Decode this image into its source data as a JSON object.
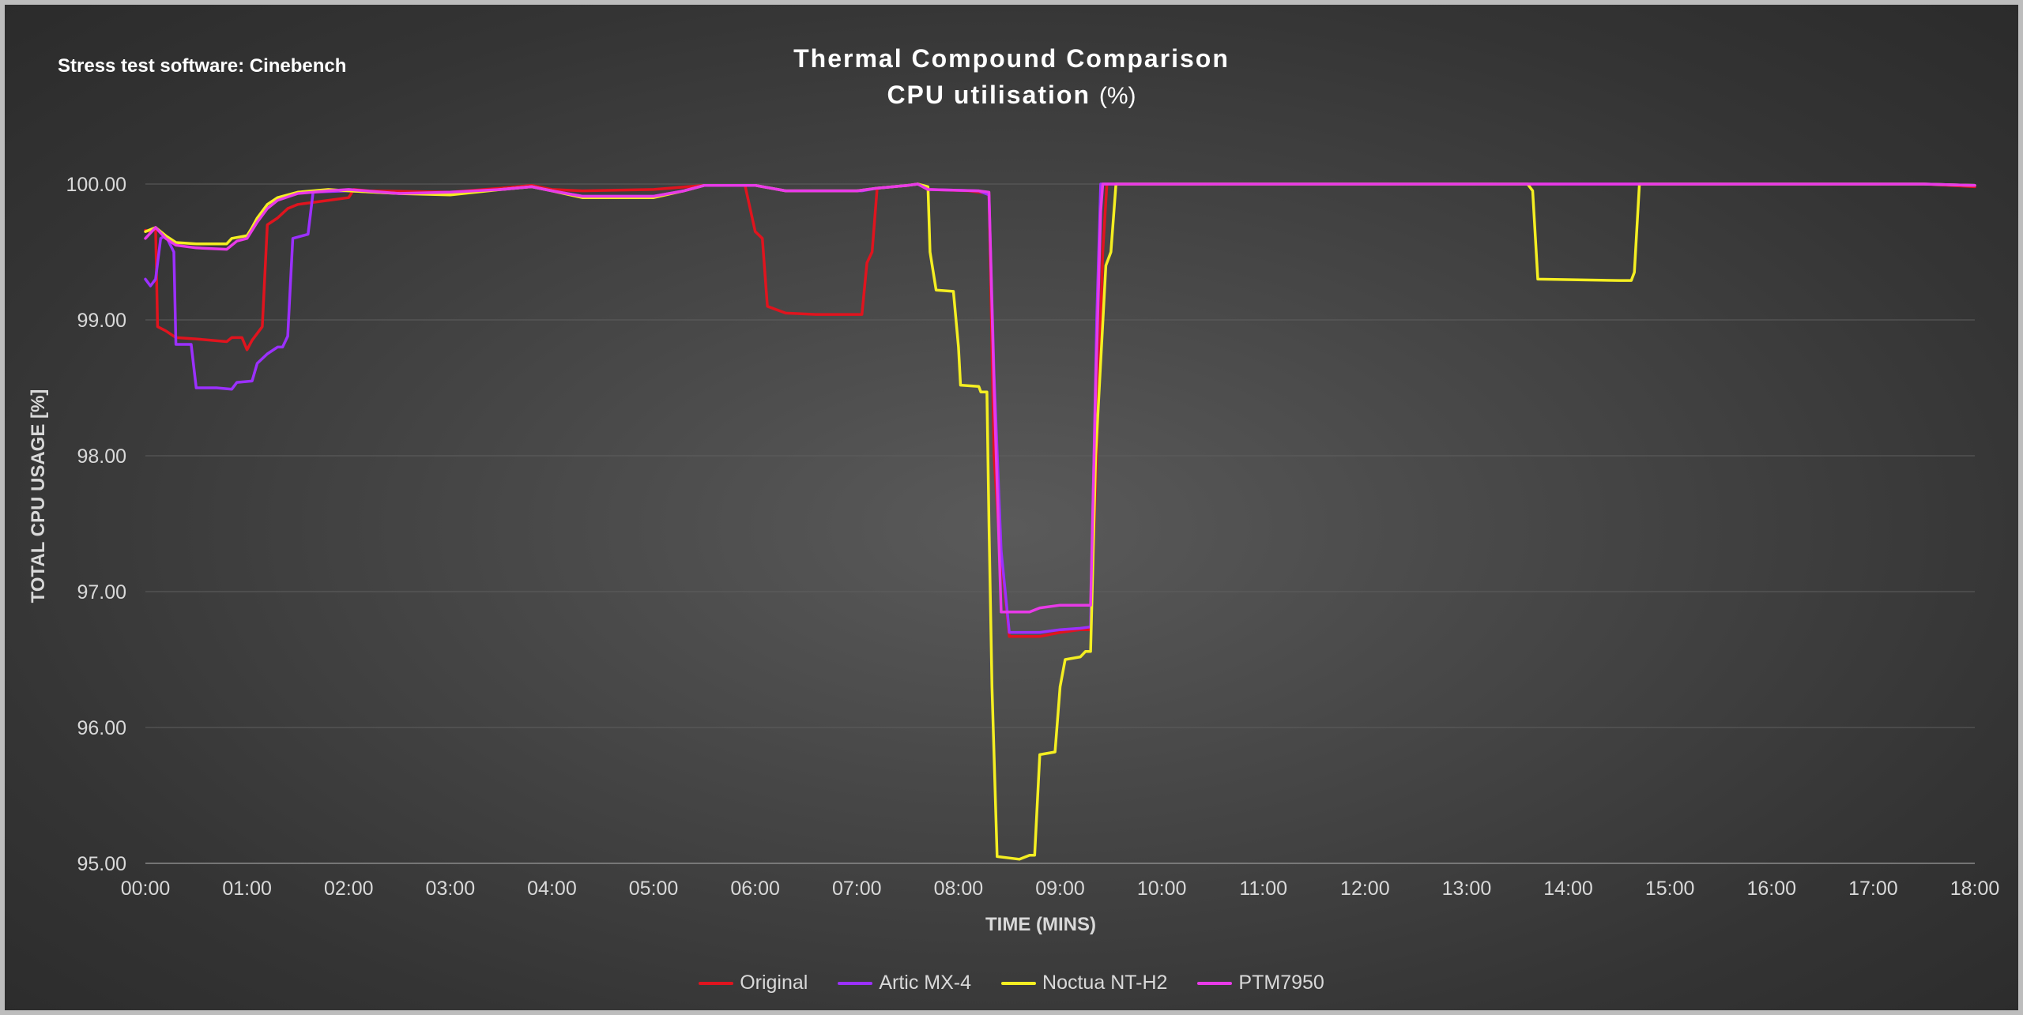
{
  "note": "Stress test software: Cinebench",
  "chart_data": {
    "type": "line",
    "title": "Thermal Compound Comparison",
    "subtitle": "CPU utilisation",
    "subtitle_unit": "(%)",
    "xlabel": "TIME (MINS)",
    "ylabel": "TOTAL CPU USAGE [%]",
    "xlim": [
      0,
      18
    ],
    "ylim": [
      95,
      100
    ],
    "x_ticks": [
      "00:00",
      "01:00",
      "02:00",
      "03:00",
      "04:00",
      "05:00",
      "06:00",
      "07:00",
      "08:00",
      "09:00",
      "10:00",
      "11:00",
      "12:00",
      "13:00",
      "14:00",
      "15:00",
      "16:00",
      "17:00",
      "18:00"
    ],
    "y_ticks": [
      "95.00",
      "96.00",
      "97.00",
      "98.00",
      "99.00",
      "100.00"
    ],
    "grid": true,
    "legend_position": "bottom",
    "series": [
      {
        "name": "Original",
        "color": "#e0141e",
        "points": [
          [
            0,
            99.66
          ],
          [
            0.05,
            99.65
          ],
          [
            0.1,
            99.68
          ],
          [
            0.12,
            98.95
          ],
          [
            0.2,
            98.92
          ],
          [
            0.3,
            98.87
          ],
          [
            0.5,
            98.86
          ],
          [
            0.8,
            98.84
          ],
          [
            0.85,
            98.87
          ],
          [
            0.95,
            98.87
          ],
          [
            1.0,
            98.78
          ],
          [
            1.05,
            98.85
          ],
          [
            1.15,
            98.95
          ],
          [
            1.2,
            99.7
          ],
          [
            1.3,
            99.75
          ],
          [
            1.4,
            99.82
          ],
          [
            1.5,
            99.85
          ],
          [
            1.7,
            99.87
          ],
          [
            2.0,
            99.9
          ],
          [
            2.05,
            99.96
          ],
          [
            2.2,
            99.95
          ],
          [
            3.0,
            99.94
          ],
          [
            3.5,
            99.97
          ],
          [
            3.8,
            99.99
          ],
          [
            4.0,
            99.96
          ],
          [
            4.3,
            99.95
          ],
          [
            5.0,
            99.96
          ],
          [
            5.5,
            99.99
          ],
          [
            5.9,
            99.99
          ],
          [
            6.0,
            99.65
          ],
          [
            6.07,
            99.6
          ],
          [
            6.12,
            99.1
          ],
          [
            6.3,
            99.05
          ],
          [
            6.6,
            99.04
          ],
          [
            7.05,
            99.04
          ],
          [
            7.1,
            99.42
          ],
          [
            7.15,
            99.5
          ],
          [
            7.2,
            99.97
          ],
          [
            7.5,
            99.99
          ],
          [
            7.6,
            100.0
          ],
          [
            7.7,
            99.96
          ],
          [
            8.1,
            99.95
          ],
          [
            8.3,
            99.93
          ],
          [
            8.35,
            98.0
          ],
          [
            8.4,
            97.4
          ],
          [
            8.5,
            96.67
          ],
          [
            8.8,
            96.67
          ],
          [
            9.0,
            96.7
          ],
          [
            9.2,
            96.72
          ],
          [
            9.3,
            96.72
          ],
          [
            9.35,
            97.8
          ],
          [
            9.42,
            99.5
          ],
          [
            9.46,
            100.0
          ],
          [
            12.0,
            100.0
          ],
          [
            17.5,
            100.0
          ],
          [
            18.0,
            99.98
          ]
        ]
      },
      {
        "name": "Artic MX-4",
        "color": "#9b30ff",
        "points": [
          [
            0,
            99.3
          ],
          [
            0.05,
            99.25
          ],
          [
            0.1,
            99.3
          ],
          [
            0.15,
            99.6
          ],
          [
            0.2,
            99.62
          ],
          [
            0.28,
            99.5
          ],
          [
            0.3,
            98.82
          ],
          [
            0.45,
            98.82
          ],
          [
            0.5,
            98.5
          ],
          [
            0.7,
            98.5
          ],
          [
            0.85,
            98.49
          ],
          [
            0.9,
            98.54
          ],
          [
            1.05,
            98.55
          ],
          [
            1.1,
            98.68
          ],
          [
            1.2,
            98.75
          ],
          [
            1.3,
            98.8
          ],
          [
            1.35,
            98.8
          ],
          [
            1.4,
            98.88
          ],
          [
            1.45,
            99.6
          ],
          [
            1.6,
            99.63
          ],
          [
            1.65,
            99.94
          ],
          [
            2.0,
            99.95
          ],
          [
            2.5,
            99.93
          ],
          [
            3.0,
            99.93
          ],
          [
            3.5,
            99.96
          ],
          [
            3.8,
            99.98
          ],
          [
            4.0,
            99.95
          ],
          [
            4.3,
            99.91
          ],
          [
            5.0,
            99.91
          ],
          [
            5.3,
            99.95
          ],
          [
            5.5,
            99.99
          ],
          [
            6.0,
            99.99
          ],
          [
            6.3,
            99.95
          ],
          [
            7.05,
            99.95
          ],
          [
            7.2,
            99.97
          ],
          [
            7.5,
            99.99
          ],
          [
            7.6,
            100.0
          ],
          [
            7.7,
            99.96
          ],
          [
            8.2,
            99.95
          ],
          [
            8.3,
            99.92
          ],
          [
            8.35,
            98.6
          ],
          [
            8.42,
            97.3
          ],
          [
            8.5,
            96.7
          ],
          [
            8.8,
            96.7
          ],
          [
            9.0,
            96.72
          ],
          [
            9.2,
            96.73
          ],
          [
            9.3,
            96.74
          ],
          [
            9.36,
            99.0
          ],
          [
            9.4,
            100.0
          ],
          [
            12.0,
            100.0
          ],
          [
            17.5,
            100.0
          ],
          [
            18.0,
            99.99
          ]
        ]
      },
      {
        "name": "Noctua NT-H2",
        "color": "#f4ee22",
        "points": [
          [
            0,
            99.65
          ],
          [
            0.1,
            99.68
          ],
          [
            0.2,
            99.62
          ],
          [
            0.3,
            99.57
          ],
          [
            0.5,
            99.56
          ],
          [
            0.8,
            99.56
          ],
          [
            0.85,
            99.6
          ],
          [
            1.0,
            99.62
          ],
          [
            1.05,
            99.68
          ],
          [
            1.1,
            99.75
          ],
          [
            1.2,
            99.85
          ],
          [
            1.3,
            99.9
          ],
          [
            1.5,
            99.94
          ],
          [
            1.8,
            99.96
          ],
          [
            2.0,
            99.95
          ],
          [
            2.5,
            99.93
          ],
          [
            3.0,
            99.92
          ],
          [
            3.5,
            99.96
          ],
          [
            3.8,
            99.98
          ],
          [
            4.0,
            99.95
          ],
          [
            4.3,
            99.9
          ],
          [
            5.0,
            99.9
          ],
          [
            5.3,
            99.95
          ],
          [
            5.5,
            99.99
          ],
          [
            6.0,
            99.99
          ],
          [
            6.3,
            99.95
          ],
          [
            7.0,
            99.95
          ],
          [
            7.2,
            99.97
          ],
          [
            7.5,
            99.99
          ],
          [
            7.6,
            100.0
          ],
          [
            7.7,
            99.98
          ],
          [
            7.72,
            99.5
          ],
          [
            7.78,
            99.22
          ],
          [
            7.95,
            99.21
          ],
          [
            8.0,
            98.8
          ],
          [
            8.02,
            98.52
          ],
          [
            8.2,
            98.51
          ],
          [
            8.22,
            98.47
          ],
          [
            8.28,
            98.47
          ],
          [
            8.3,
            97.5
          ],
          [
            8.33,
            96.3
          ],
          [
            8.38,
            95.05
          ],
          [
            8.6,
            95.03
          ],
          [
            8.7,
            95.06
          ],
          [
            8.75,
            95.06
          ],
          [
            8.8,
            95.8
          ],
          [
            8.95,
            95.82
          ],
          [
            9.0,
            96.3
          ],
          [
            9.05,
            96.5
          ],
          [
            9.2,
            96.52
          ],
          [
            9.25,
            96.56
          ],
          [
            9.3,
            96.56
          ],
          [
            9.35,
            98.0
          ],
          [
            9.45,
            99.4
          ],
          [
            9.5,
            99.5
          ],
          [
            9.55,
            100.0
          ],
          [
            12.0,
            100.0
          ],
          [
            13.6,
            100.0
          ],
          [
            13.65,
            99.95
          ],
          [
            13.7,
            99.3
          ],
          [
            14.5,
            99.29
          ],
          [
            14.62,
            99.29
          ],
          [
            14.65,
            99.35
          ],
          [
            14.7,
            100.0
          ],
          [
            17.5,
            100.0
          ],
          [
            18.0,
            99.99
          ]
        ]
      },
      {
        "name": "PTM7950",
        "color": "#e83ae8",
        "points": [
          [
            0,
            99.6
          ],
          [
            0.1,
            99.68
          ],
          [
            0.2,
            99.6
          ],
          [
            0.3,
            99.55
          ],
          [
            0.5,
            99.53
          ],
          [
            0.8,
            99.52
          ],
          [
            0.9,
            99.58
          ],
          [
            1.0,
            99.6
          ],
          [
            1.1,
            99.72
          ],
          [
            1.2,
            99.82
          ],
          [
            1.3,
            99.88
          ],
          [
            1.5,
            99.93
          ],
          [
            1.8,
            99.95
          ],
          [
            2.0,
            99.96
          ],
          [
            2.5,
            99.93
          ],
          [
            3.0,
            99.94
          ],
          [
            3.5,
            99.96
          ],
          [
            3.8,
            99.98
          ],
          [
            4.0,
            99.95
          ],
          [
            4.3,
            99.91
          ],
          [
            5.0,
            99.91
          ],
          [
            5.3,
            99.95
          ],
          [
            5.5,
            99.99
          ],
          [
            6.0,
            99.99
          ],
          [
            6.3,
            99.95
          ],
          [
            7.0,
            99.95
          ],
          [
            7.2,
            99.97
          ],
          [
            7.5,
            99.99
          ],
          [
            7.6,
            100.0
          ],
          [
            7.7,
            99.96
          ],
          [
            8.2,
            99.95
          ],
          [
            8.3,
            99.94
          ],
          [
            8.35,
            98.5
          ],
          [
            8.42,
            96.85
          ],
          [
            8.7,
            96.85
          ],
          [
            8.8,
            96.88
          ],
          [
            9.0,
            96.9
          ],
          [
            9.3,
            96.9
          ],
          [
            9.35,
            98.5
          ],
          [
            9.4,
            99.8
          ],
          [
            9.42,
            100.0
          ],
          [
            12.0,
            100.0
          ],
          [
            17.5,
            100.0
          ],
          [
            18.0,
            99.99
          ]
        ]
      }
    ]
  }
}
